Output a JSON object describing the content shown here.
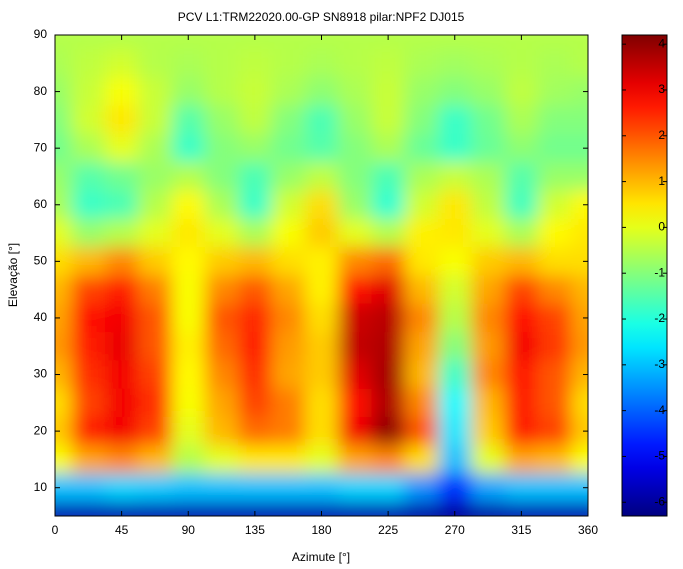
{
  "chart_data": {
    "type": "heatmap",
    "title": "PCV L1:TRM22020.00-GP SN8918 pilar:NPF2 DJ015",
    "x_label": "Azimute [°]",
    "y_label": "Elevação [°]",
    "x": [
      0,
      22.5,
      45,
      67.5,
      90,
      112.5,
      135,
      157.5,
      180,
      202.5,
      225,
      247.5,
      270,
      292.5,
      315,
      337.5,
      360
    ],
    "y": [
      90,
      85,
      80,
      75,
      70,
      65,
      60,
      55,
      50,
      45,
      40,
      35,
      30,
      25,
      20,
      15,
      10,
      5
    ],
    "z": [
      [
        -0.5,
        -0.5,
        -0.5,
        -0.5,
        -0.5,
        -0.5,
        -0.5,
        -0.5,
        -0.5,
        -0.5,
        -0.5,
        -0.5,
        -0.5,
        -0.5,
        -0.5,
        -0.5,
        -0.5
      ],
      [
        -0.6,
        -0.4,
        -0.2,
        -0.5,
        -0.6,
        -0.5,
        -0.4,
        -0.5,
        -0.6,
        -0.5,
        -0.4,
        -0.6,
        -0.7,
        -0.6,
        -0.5,
        -0.6,
        -0.5
      ],
      [
        -0.8,
        -0.3,
        0.2,
        -0.3,
        -0.8,
        -0.5,
        -0.3,
        -0.6,
        -0.9,
        -0.6,
        -0.3,
        -0.8,
        -1.0,
        -0.8,
        -0.4,
        -0.7,
        -0.8
      ],
      [
        -1.0,
        -0.2,
        0.5,
        -0.3,
        -1.5,
        -0.8,
        -0.4,
        -1.0,
        -1.6,
        -0.8,
        -0.3,
        -1.0,
        -1.8,
        -1.2,
        -0.6,
        -1.0,
        -1.0
      ],
      [
        -1.2,
        -0.6,
        0,
        -0.6,
        -1.8,
        -1.0,
        -0.8,
        -1.2,
        -1.5,
        -1.0,
        -0.6,
        -1.3,
        -1.8,
        -1.3,
        -0.9,
        -1.2,
        -1.2
      ],
      [
        -0.8,
        -1.5,
        -1.2,
        -0.8,
        -0.5,
        -1.0,
        -1.6,
        -0.8,
        -0.4,
        -1.0,
        -1.6,
        -0.6,
        -0.3,
        -0.6,
        -1.5,
        -0.8,
        -0.8
      ],
      [
        -0.6,
        -1.8,
        -1.6,
        -0.5,
        0.3,
        -0.6,
        -1.8,
        -0.2,
        0.6,
        -0.8,
        -1.9,
        -0.2,
        0.5,
        -0.4,
        -1.7,
        -0.2,
        0.3
      ],
      [
        0,
        -0.8,
        -0.5,
        0,
        0.5,
        0,
        -0.6,
        0.2,
        0.8,
        0,
        -0.5,
        0.4,
        0.5,
        0,
        -0.6,
        0.3,
        0.5
      ],
      [
        0.6,
        1.0,
        1.5,
        0.8,
        0.3,
        0.8,
        1.0,
        0.6,
        0.4,
        1.5,
        1.8,
        0.5,
        0.2,
        0.8,
        1.0,
        0.6,
        0.6
      ],
      [
        1.0,
        2.2,
        2.6,
        1.6,
        0.2,
        1.5,
        2.0,
        1.2,
        0.4,
        2.8,
        3.2,
        1.0,
        -0.2,
        1.2,
        2.2,
        1.5,
        1.0
      ],
      [
        1.2,
        2.8,
        3.0,
        2.0,
        0.2,
        2.0,
        2.5,
        1.5,
        0.6,
        3.4,
        3.6,
        1.5,
        -0.5,
        1.5,
        2.8,
        2.2,
        1.2
      ],
      [
        1.3,
        2.6,
        3.1,
        2.0,
        0.4,
        1.8,
        2.6,
        1.3,
        0.8,
        3.5,
        3.7,
        1.2,
        -1.0,
        1.3,
        3.0,
        2.3,
        1.3
      ],
      [
        1.0,
        2.4,
        3.0,
        2.2,
        0.3,
        1.5,
        2.4,
        1.2,
        0.8,
        3.2,
        3.8,
        1.0,
        -1.8,
        1.5,
        2.7,
        2.0,
        1.0
      ],
      [
        0.6,
        2.2,
        3.0,
        2.4,
        0.2,
        1.2,
        2.2,
        1.6,
        0.6,
        2.8,
        3.7,
        1.5,
        -2.4,
        1.0,
        2.6,
        2.0,
        0.6
      ],
      [
        0.8,
        2.6,
        3.0,
        2.2,
        0.0,
        1.0,
        1.8,
        1.6,
        0.6,
        3.0,
        4.0,
        2.0,
        -2.6,
        0.8,
        2.6,
        2.2,
        0.8
      ],
      [
        0.2,
        1.2,
        1.5,
        1.0,
        -0.5,
        0,
        0.5,
        0.5,
        0,
        1.2,
        1.5,
        0.6,
        -3.0,
        0,
        1.2,
        1.0,
        0.2
      ],
      [
        -3.0,
        -3.0,
        -2.8,
        -2.9,
        -3.0,
        -3.0,
        -3.0,
        -3.0,
        -3.0,
        -2.8,
        -2.8,
        -3.5,
        -4.5,
        -3.3,
        -3.0,
        -3.0,
        -3.0
      ],
      [
        -5.8,
        -5.8,
        -5.8,
        -5.8,
        -5.8,
        -5.8,
        -5.8,
        -5.8,
        -5.8,
        -5.8,
        -5.8,
        -5.9,
        -6.0,
        -5.9,
        -5.8,
        -5.8,
        -5.8
      ]
    ],
    "colormap": "jet",
    "xlim": [
      0,
      360
    ],
    "xticks": [
      0,
      45,
      90,
      135,
      180,
      225,
      270,
      315,
      360
    ],
    "ylim": [
      5,
      90
    ],
    "yticks": [
      10,
      20,
      30,
      40,
      50,
      60,
      70,
      80,
      90
    ],
    "clim": [
      -6.3,
      4.2
    ],
    "cticks": [
      -6,
      -5,
      -4,
      -3,
      -2,
      -1,
      0,
      1,
      2,
      3,
      4
    ]
  }
}
